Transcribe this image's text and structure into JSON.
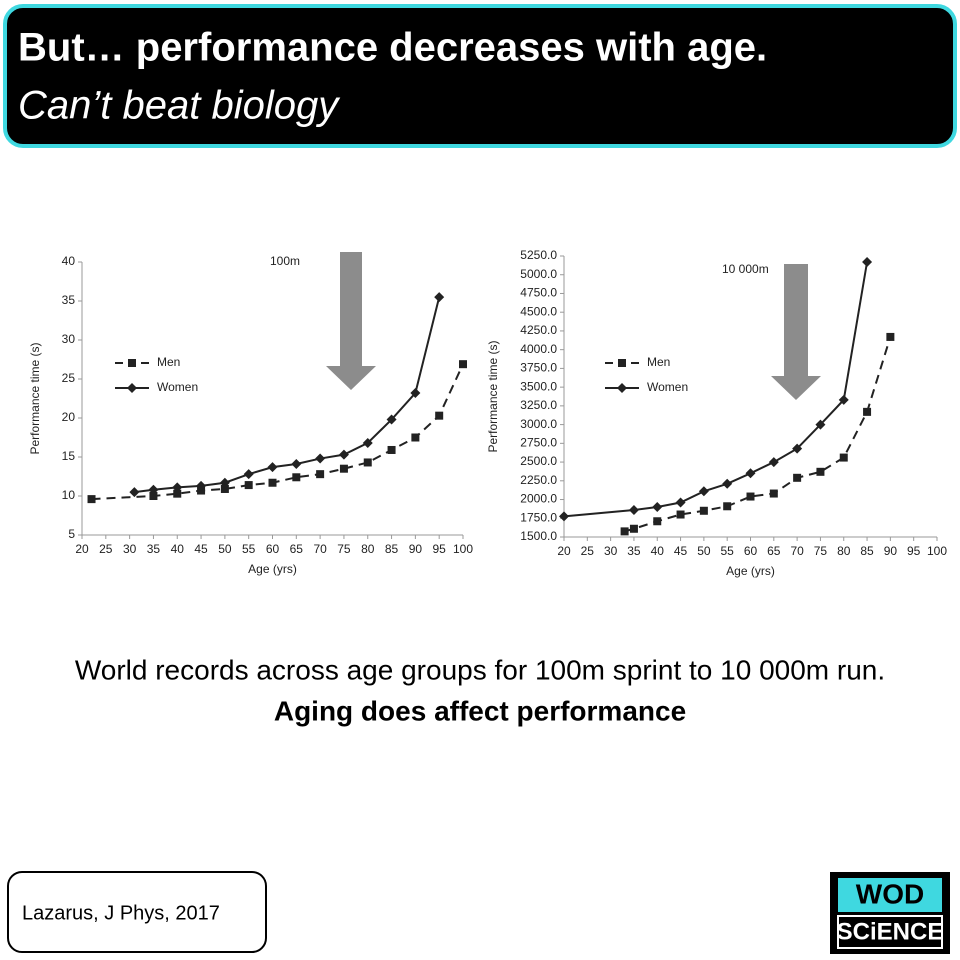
{
  "header": {
    "title": "But… performance decreases with age.",
    "subtitle": "Can’t beat biology"
  },
  "chart_data": [
    {
      "type": "line",
      "annotation": "100m",
      "x_label": "Age (yrs)",
      "y_label": "Performance time (s)",
      "xlim": [
        20,
        100
      ],
      "xticks": [
        20,
        25,
        30,
        35,
        40,
        45,
        50,
        55,
        60,
        65,
        70,
        75,
        80,
        85,
        90,
        95,
        100
      ],
      "ylim": [
        5,
        40
      ],
      "yticks": [
        5,
        10,
        15,
        20,
        25,
        30,
        35,
        40
      ],
      "series": [
        {
          "name": "Men",
          "color": "#222222",
          "line_style": "dashed",
          "marker": "square",
          "x": [
            22,
            35,
            40,
            45,
            50,
            55,
            60,
            65,
            70,
            75,
            80,
            85,
            90,
            95,
            100
          ],
          "values": [
            9.6,
            10.0,
            10.3,
            10.7,
            10.9,
            11.4,
            11.7,
            12.4,
            12.8,
            13.5,
            14.3,
            15.9,
            17.5,
            20.3,
            26.9
          ]
        },
        {
          "name": "Women",
          "color": "#222222",
          "line_style": "solid",
          "marker": "diamond",
          "x": [
            31,
            35,
            40,
            45,
            50,
            55,
            60,
            65,
            70,
            75,
            80,
            85,
            90,
            95
          ],
          "values": [
            10.5,
            10.8,
            11.1,
            11.3,
            11.7,
            12.8,
            13.7,
            14.1,
            14.8,
            15.3,
            16.8,
            19.8,
            23.2,
            35.5
          ]
        }
      ]
    },
    {
      "type": "line",
      "annotation": "10 000m",
      "x_label": "Age (yrs)",
      "y_label": "Performance time (s)",
      "xlim": [
        20,
        100
      ],
      "xticks": [
        20,
        25,
        30,
        35,
        40,
        45,
        50,
        55,
        60,
        65,
        70,
        75,
        80,
        85,
        90,
        95,
        100
      ],
      "ylim": [
        1500,
        5250
      ],
      "yticks": [
        {
          "value": 1500,
          "label": "1500.0"
        },
        {
          "value": 1750,
          "label": "1750.0"
        },
        {
          "value": 2000,
          "label": "2000.0"
        },
        {
          "value": 2250,
          "label": "2250.0"
        },
        {
          "value": 2500,
          "label": "2500.0"
        },
        {
          "value": 2750,
          "label": "2750.0"
        },
        {
          "value": 3000,
          "label": "3000.0"
        },
        {
          "value": 3250,
          "label": "3250.0"
        },
        {
          "value": 3500,
          "label": "3500.0"
        },
        {
          "value": 3750,
          "label": "3750.0"
        },
        {
          "value": 4000,
          "label": "4000.0"
        },
        {
          "value": 4250,
          "label": "4250.0"
        },
        {
          "value": 4500,
          "label": "4500.0"
        },
        {
          "value": 4750,
          "label": "4750.0"
        },
        {
          "value": 5000,
          "label": "5000.0"
        },
        {
          "value": 5250,
          "label": "5250.0"
        }
      ],
      "series": [
        {
          "name": "Men",
          "color": "#222222",
          "line_style": "dashed",
          "marker": "square",
          "x": [
            33,
            35,
            40,
            45,
            50,
            55,
            60,
            65,
            70,
            75,
            80,
            85,
            90
          ],
          "values": [
            1575,
            1610,
            1710,
            1800,
            1850,
            1910,
            2040,
            2080,
            2290,
            2370,
            2560,
            3170,
            4170
          ]
        },
        {
          "name": "Women",
          "color": "#222222",
          "line_style": "solid",
          "marker": "diamond",
          "x": [
            20,
            35,
            40,
            45,
            50,
            55,
            60,
            65,
            70,
            75,
            80,
            85
          ],
          "values": [
            1775,
            1860,
            1900,
            1960,
            2110,
            2210,
            2350,
            2500,
            2680,
            3000,
            3330,
            5170
          ]
        }
      ]
    }
  ],
  "caption": {
    "line1": "World records across age groups for 100m sprint to 10 000m run.",
    "line2": "Aging does affect performance"
  },
  "citation": "Lazarus, J Phys, 2017",
  "logo": {
    "top": "WOD",
    "bottom": "SCiENCE"
  }
}
